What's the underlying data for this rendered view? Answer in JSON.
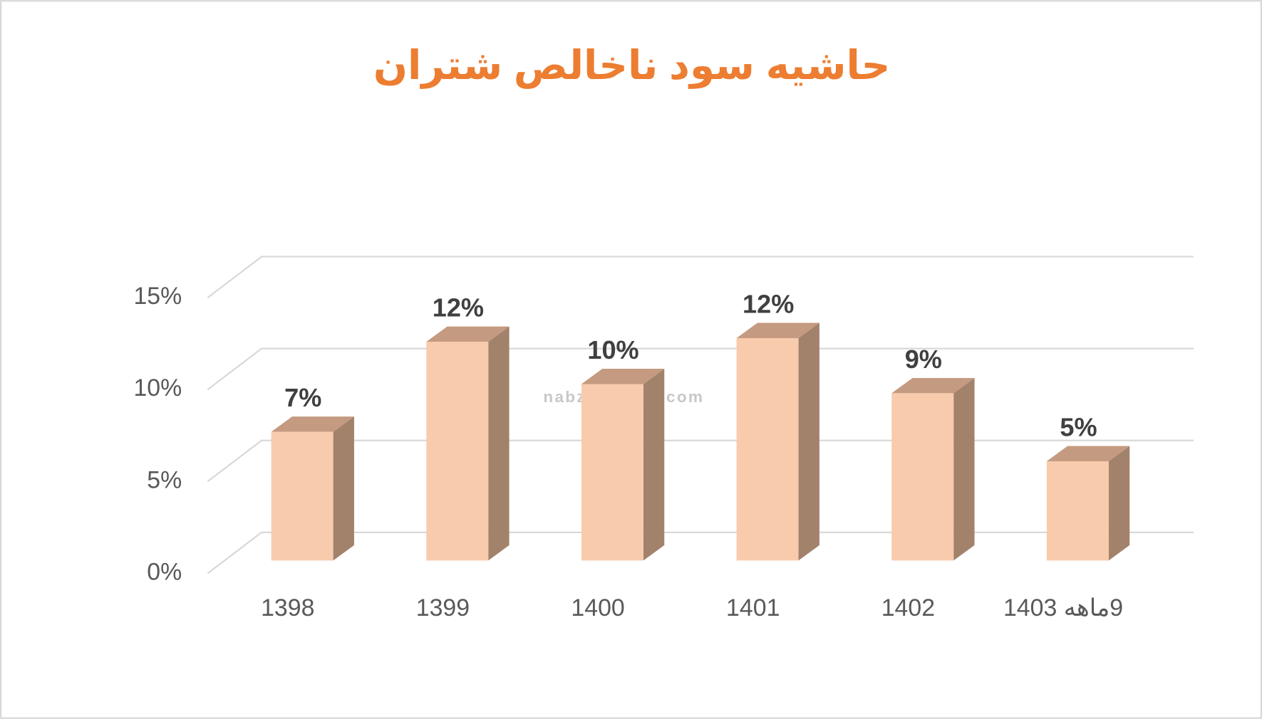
{
  "chart_data": {
    "type": "bar3d",
    "title": "حاشیه سود ناخالص شتران",
    "watermark": "nabzebourse.com",
    "categories": [
      "1398",
      "1399",
      "1400",
      "1401",
      "1402",
      "9ماهه 1403"
    ],
    "values": [
      7,
      11.9,
      9.6,
      12.1,
      9.1,
      5.4
    ],
    "value_labels": [
      "7%",
      "12%",
      "10%",
      "12%",
      "9%",
      "5%"
    ],
    "color": "#f8cbad",
    "ylim": [
      0,
      15
    ],
    "yticks": [
      {
        "value": 0,
        "label": "0%"
      },
      {
        "value": 5,
        "label": "5%"
      },
      {
        "value": 10,
        "label": "10%"
      },
      {
        "value": 15,
        "label": "15%"
      }
    ],
    "grid": true
  }
}
